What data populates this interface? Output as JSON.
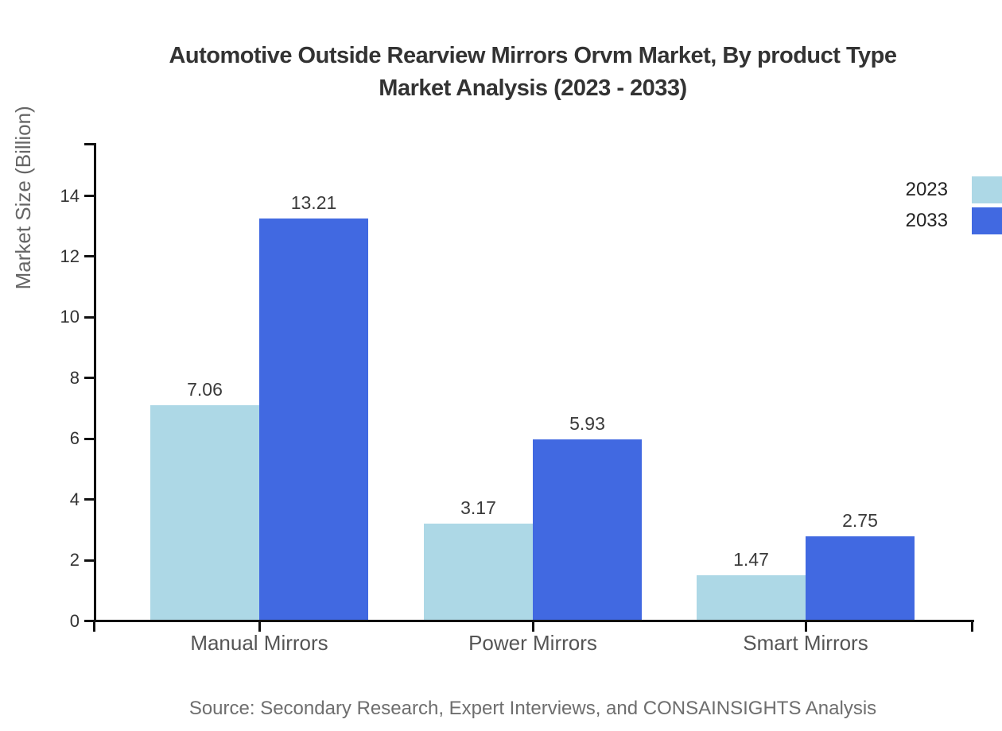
{
  "title": {
    "line1": "Automotive Outside Rearview Mirrors Orvm Market, By product Type",
    "line2": "Market Analysis (2023 - 2033)"
  },
  "ylabel": "Market Size (Billion)",
  "source": "Source: Secondary Research, Expert Interviews, and CONSAINSIGHTS Analysis",
  "legend": [
    {
      "label": "2023",
      "color": "#ADD8E6"
    },
    {
      "label": "2033",
      "color": "#4169E1"
    }
  ],
  "colors": {
    "series_2023": "#ADD8E6",
    "series_2033": "#4169E1",
    "axis": "#111111",
    "title_text": "#333333",
    "tick_text": "#333333",
    "category_text": "#555555",
    "source_text": "#6e6e6e"
  },
  "chart_data": {
    "type": "bar",
    "title": "Automotive Outside Rearview Mirrors Orvm Market, By product Type Market Analysis (2023 - 2033)",
    "categories": [
      "Manual Mirrors",
      "Power Mirrors",
      "Smart Mirrors"
    ],
    "series": [
      {
        "name": "2023",
        "color": "#ADD8E6",
        "values": [
          7.06,
          3.17,
          1.47
        ]
      },
      {
        "name": "2033",
        "color": "#4169E1",
        "values": [
          13.21,
          5.93,
          2.75
        ]
      }
    ],
    "xlabel": "",
    "ylabel": "Market Size (Billion)",
    "yticks": [
      0,
      2,
      4,
      6,
      8,
      10,
      12,
      14
    ],
    "ylim": [
      0,
      15.7
    ],
    "grid": false,
    "legend_position": "top-right",
    "bar_value_labels": true,
    "value_label_format": "2-decimals"
  }
}
